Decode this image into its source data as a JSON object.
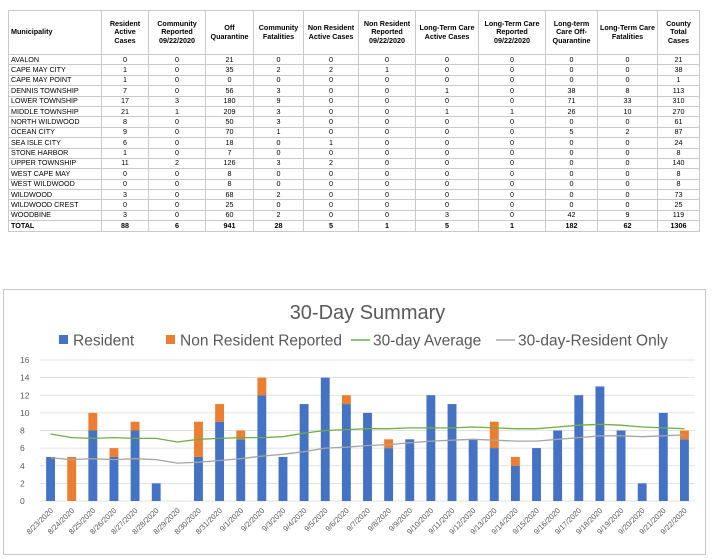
{
  "table": {
    "headers": [
      "Municipality",
      "Resident Active Cases",
      "Community Reported 09/22/2020",
      "Off Quarantine",
      "Community Fatalities",
      "Non Resident Active Cases",
      "Non Resident Reported 09/22/2020",
      "Long-Term Care Active Cases",
      "Long-Term Care Reported 09/22/2020",
      "Long-term Care Off-Quarantine",
      "Long-Term Care Fatalities",
      "County Total Cases"
    ],
    "rows": [
      [
        "Avalon",
        "0",
        "0",
        "21",
        "0",
        "0",
        "0",
        "0",
        "0",
        "0",
        "0",
        "21"
      ],
      [
        "Cape May City",
        "1",
        "0",
        "35",
        "2",
        "2",
        "1",
        "0",
        "0",
        "0",
        "0",
        "38"
      ],
      [
        "Cape May Point",
        "1",
        "0",
        "0",
        "0",
        "0",
        "0",
        "0",
        "0",
        "0",
        "0",
        "1"
      ],
      [
        "Dennis Township",
        "7",
        "0",
        "56",
        "3",
        "0",
        "0",
        "1",
        "0",
        "38",
        "8",
        "113"
      ],
      [
        "Lower Township",
        "17",
        "3",
        "180",
        "9",
        "0",
        "0",
        "0",
        "0",
        "71",
        "33",
        "310"
      ],
      [
        "Middle Township",
        "21",
        "1",
        "209",
        "3",
        "0",
        "0",
        "1",
        "1",
        "26",
        "10",
        "270"
      ],
      [
        "North Wildwood",
        "8",
        "0",
        "50",
        "3",
        "0",
        "0",
        "0",
        "0",
        "0",
        "0",
        "61"
      ],
      [
        "Ocean City",
        "9",
        "0",
        "70",
        "1",
        "0",
        "0",
        "0",
        "0",
        "5",
        "2",
        "87"
      ],
      [
        "Sea Isle City",
        "6",
        "0",
        "18",
        "0",
        "1",
        "0",
        "0",
        "0",
        "0",
        "0",
        "24"
      ],
      [
        "Stone Harbor",
        "1",
        "0",
        "7",
        "0",
        "0",
        "0",
        "0",
        "0",
        "0",
        "0",
        "8"
      ],
      [
        "Upper Township",
        "11",
        "2",
        "126",
        "3",
        "2",
        "0",
        "0",
        "0",
        "0",
        "0",
        "140"
      ],
      [
        "West Cape May",
        "0",
        "0",
        "8",
        "0",
        "0",
        "0",
        "0",
        "0",
        "0",
        "0",
        "8"
      ],
      [
        "West Wildwood",
        "0",
        "0",
        "8",
        "0",
        "0",
        "0",
        "0",
        "0",
        "0",
        "0",
        "8"
      ],
      [
        "Wildwood",
        "3",
        "0",
        "68",
        "2",
        "0",
        "0",
        "0",
        "0",
        "0",
        "0",
        "73"
      ],
      [
        "Wildwood Crest",
        "0",
        "0",
        "25",
        "0",
        "0",
        "0",
        "0",
        "0",
        "0",
        "0",
        "25"
      ],
      [
        "Woodbine",
        "3",
        "0",
        "60",
        "2",
        "0",
        "0",
        "3",
        "0",
        "42",
        "9",
        "119"
      ]
    ],
    "total": [
      "Total",
      "88",
      "6",
      "941",
      "28",
      "5",
      "1",
      "5",
      "1",
      "182",
      "62",
      "1306"
    ]
  },
  "chart_data": {
    "type": "bar",
    "title": "30-Day Summary",
    "stacked": true,
    "categories": [
      "8/23/2020",
      "8/24/2020",
      "8/25/2020",
      "8/26/2020",
      "8/27/2020",
      "8/28/2020",
      "8/29/2020",
      "8/30/2020",
      "8/31/2020",
      "9/1/2020",
      "9/2/2020",
      "9/3/2020",
      "9/4/2020",
      "9/5/2020",
      "9/6/2020",
      "9/7/2020",
      "9/8/2020",
      "9/9/2020",
      "9/10/2020",
      "9/11/2020",
      "9/12/2020",
      "9/13/2020",
      "9/14/2020",
      "9/15/2020",
      "9/16/2020",
      "9/17/2020",
      "9/18/2020",
      "9/19/2020",
      "9/20/2020",
      "9/21/2020",
      "9/22/2020"
    ],
    "series": [
      {
        "name": "Resident",
        "kind": "bar",
        "color": "#4472c4",
        "values": [
          5,
          0,
          8,
          5,
          8,
          2,
          0,
          5,
          9,
          7,
          12,
          5,
          11,
          14,
          11,
          10,
          6,
          7,
          12,
          11,
          7,
          6,
          4,
          6,
          8,
          12,
          13,
          8,
          2,
          10,
          7
        ]
      },
      {
        "name": "Non Resident Reported",
        "kind": "bar",
        "color": "#ed7d31",
        "values": [
          0,
          5,
          2,
          1,
          1,
          0,
          0,
          4,
          2,
          1,
          2,
          0,
          0,
          0,
          1,
          0,
          1,
          0,
          0,
          0,
          0,
          3,
          1,
          0,
          0,
          0,
          0,
          0,
          0,
          0,
          1
        ]
      },
      {
        "name": "30-day Average",
        "kind": "line",
        "color": "#70ad47",
        "values": [
          7.6,
          7.2,
          7.1,
          7.2,
          7.1,
          7.1,
          6.7,
          7.0,
          7.1,
          7.2,
          7.2,
          7.3,
          7.7,
          8.0,
          8.1,
          8.2,
          8.2,
          8.3,
          8.3,
          8.3,
          8.4,
          8.3,
          8.2,
          8.2,
          8.4,
          8.6,
          8.7,
          8.6,
          8.4,
          8.3,
          8.2
        ]
      },
      {
        "name": "30-day-Resident Only",
        "kind": "line",
        "color": "#a5a5a5",
        "values": [
          4.9,
          4.7,
          4.8,
          4.7,
          4.8,
          4.7,
          4.3,
          4.4,
          4.6,
          4.8,
          5.1,
          5.3,
          5.6,
          6.0,
          6.1,
          6.3,
          6.4,
          6.6,
          6.8,
          6.9,
          7.0,
          6.9,
          6.8,
          6.8,
          7.0,
          7.2,
          7.4,
          7.4,
          7.3,
          7.4,
          7.5
        ]
      }
    ],
    "ylim": [
      0,
      16
    ],
    "yticks": [
      0,
      2,
      4,
      6,
      8,
      10,
      12,
      14,
      16
    ],
    "legend_position": "top",
    "grid": true
  }
}
